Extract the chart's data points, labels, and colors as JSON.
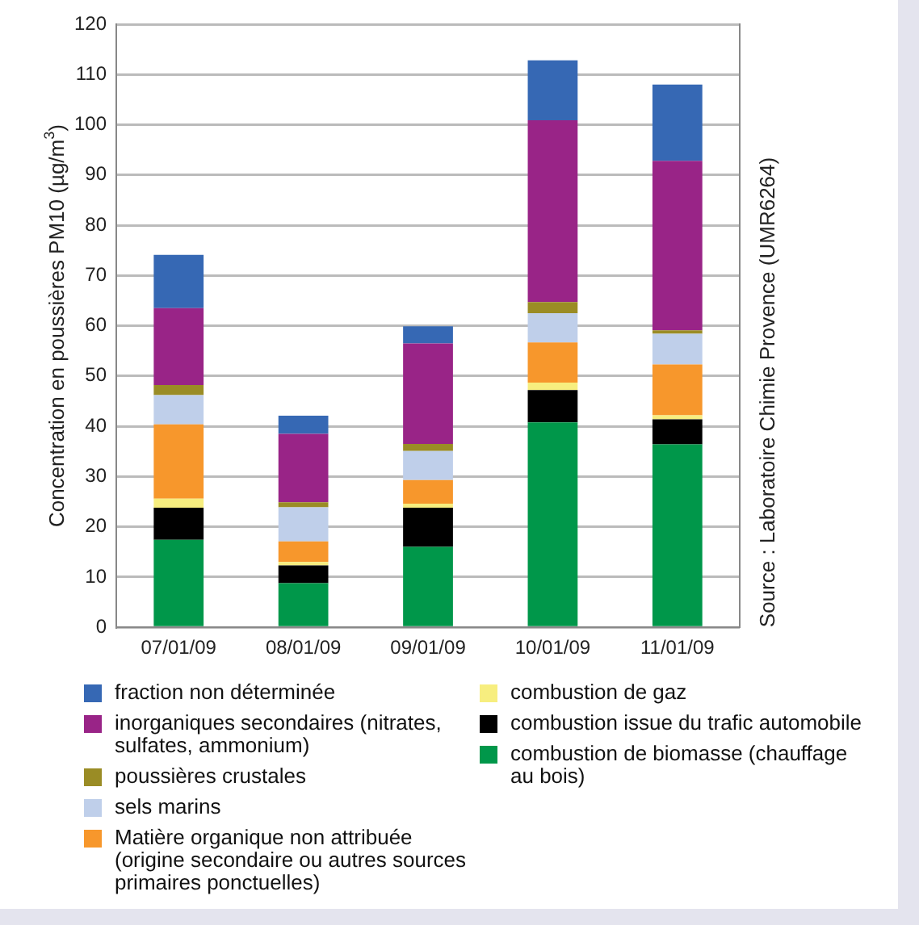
{
  "chart_data": {
    "type": "bar",
    "stacked": true,
    "ylabel": "Concentration en poussières PM10 (µg/m$^{3}$)",
    "categories": [
      "07/01/09",
      "08/01/09",
      "09/01/09",
      "10/01/09",
      "11/01/09"
    ],
    "ylim": [
      0,
      120
    ],
    "yticks": [
      0,
      10,
      20,
      30,
      40,
      50,
      60,
      70,
      80,
      90,
      100,
      110,
      120
    ],
    "grid": "y",
    "legend": "bottom",
    "annotations": [
      "Source : Laboratoire Chimie Provence (UMR6264)"
    ],
    "series": [
      {
        "name": "combustion de biomasse (chauffage au bois)",
        "color": "#00974a",
        "values": [
          17.4,
          8.8,
          16.0,
          40.8,
          36.4
        ]
      },
      {
        "name": "combustion issue du trafic automobile",
        "color": "#000000",
        "values": [
          6.4,
          3.5,
          7.8,
          6.4,
          5.0
        ]
      },
      {
        "name": "combustion de gaz",
        "color": "#f7ee7f",
        "values": [
          1.8,
          0.7,
          0.8,
          1.5,
          0.8
        ]
      },
      {
        "name": "Matière organique non attribuée (origine secondaire ou autres sources primaires ponctuelles)",
        "color": "#f7972c",
        "values": [
          14.8,
          4.1,
          4.7,
          8.0,
          10.1
        ]
      },
      {
        "name": "sels marins",
        "color": "#bfcfea",
        "values": [
          5.8,
          6.8,
          5.8,
          5.8,
          6.1
        ]
      },
      {
        "name": "poussières crustales",
        "color": "#9a8c25",
        "values": [
          2.0,
          1.0,
          1.4,
          2.2,
          0.7
        ]
      },
      {
        "name": "inorganiques secondaires (nitrates, sulfates, ammonium)",
        "color": "#992487",
        "values": [
          15.3,
          13.6,
          20.0,
          36.2,
          33.7
        ]
      },
      {
        "name": "fraction non déterminée",
        "color": "#3668b4",
        "values": [
          10.6,
          3.6,
          3.4,
          11.9,
          15.2
        ]
      }
    ]
  }
}
